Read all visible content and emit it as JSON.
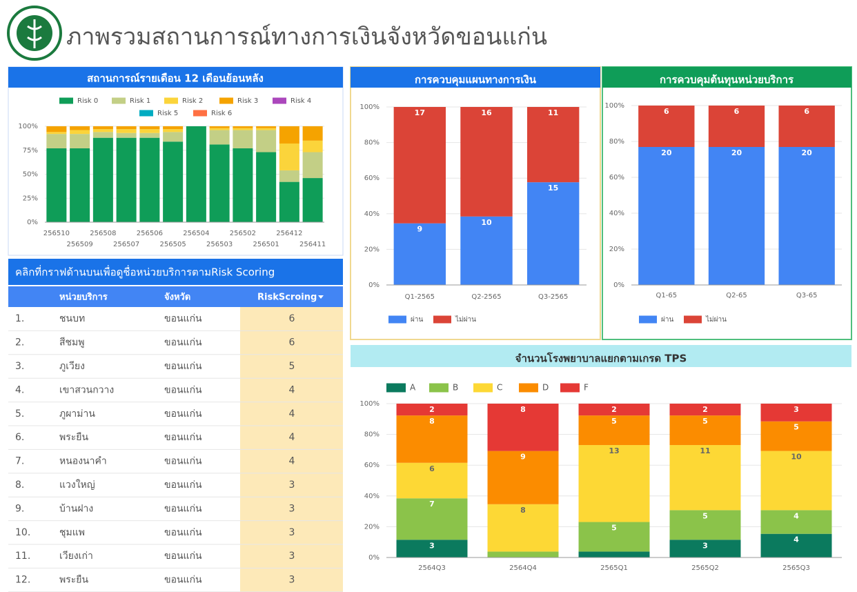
{
  "header": {
    "title": "ภาพรวมสถานการณ์ทางการเงินจังหวัดขอนแก่น"
  },
  "table": {
    "title": "คลิกที่กราฟด้านบนเพื่อดูชื่อหน่วยบริการตามRisk Scoring",
    "columns": [
      "หน่วยบริการ",
      "จังหวัด",
      "RiskScroing"
    ],
    "rows": [
      [
        "1.",
        "ชนบท",
        "ขอนแก่น",
        "6"
      ],
      [
        "2.",
        "สีชมพู",
        "ขอนแก่น",
        "6"
      ],
      [
        "3.",
        "ภูเวียง",
        "ขอนแก่น",
        "5"
      ],
      [
        "4.",
        "เขาสวนกวาง",
        "ขอนแก่น",
        "4"
      ],
      [
        "5.",
        "ภูผาม่าน",
        "ขอนแก่น",
        "4"
      ],
      [
        "6.",
        "พระยืน",
        "ขอนแก่น",
        "4"
      ],
      [
        "7.",
        "หนองนาคำ",
        "ขอนแก่น",
        "4"
      ],
      [
        "8.",
        "แวงใหญ่",
        "ขอนแก่น",
        "3"
      ],
      [
        "9.",
        "บ้านฝาง",
        "ขอนแก่น",
        "3"
      ],
      [
        "10.",
        "ชุมแพ",
        "ขอนแก่น",
        "3"
      ],
      [
        "11.",
        "เวียงเก่า",
        "ขอนแก่น",
        "3"
      ],
      [
        "12.",
        "พระยืน",
        "ขอนแก่น",
        "3"
      ]
    ]
  },
  "chart_data": [
    {
      "type": "bar",
      "stacking": "percent",
      "data_labels": false,
      "title": "สถานการณ์รายเดือน 12 เดือนย้อนหลัง",
      "categories": [
        "256510",
        "256509",
        "256508",
        "256507",
        "256506",
        "256505",
        "256504",
        "256503",
        "256502",
        "256501",
        "256412",
        "256411"
      ],
      "series": [
        {
          "name": "Risk 0",
          "color": "#0f9d58",
          "values": [
            77,
            77,
            88,
            88,
            88,
            84,
            100,
            81,
            77,
            73,
            42,
            46
          ]
        },
        {
          "name": "Risk 1",
          "color": "#c3cf86",
          "values": [
            15,
            15,
            6,
            5,
            5,
            10,
            0,
            15,
            19,
            23,
            12,
            27
          ]
        },
        {
          "name": "Risk 2",
          "color": "#fbd43b",
          "values": [
            2,
            4,
            3,
            4,
            4,
            3,
            0,
            2,
            2,
            2,
            28,
            12
          ]
        },
        {
          "name": "Risk 3",
          "color": "#f5a300",
          "values": [
            6,
            4,
            3,
            3,
            3,
            3,
            0,
            2,
            2,
            2,
            18,
            15
          ]
        },
        {
          "name": "Risk 4",
          "color": "#ab47bc",
          "values": [
            0,
            0,
            0,
            0,
            0,
            0,
            0,
            0,
            0,
            0,
            0,
            0
          ]
        },
        {
          "name": "Risk 5",
          "color": "#00acc1",
          "values": [
            0,
            0,
            0,
            0,
            0,
            0,
            0,
            0,
            0,
            0,
            0,
            0
          ]
        },
        {
          "name": "Risk 6",
          "color": "#ff7043",
          "values": [
            0,
            0,
            0,
            0,
            0,
            0,
            0,
            0,
            0,
            0,
            0,
            0
          ]
        }
      ],
      "ylim": [
        0,
        100
      ],
      "yticks": [
        {
          "value": 0,
          "label": "0%"
        },
        {
          "value": 25,
          "label": "25%"
        },
        {
          "value": 50,
          "label": "50%"
        },
        {
          "value": 75,
          "label": "75%"
        },
        {
          "value": 100,
          "label": "100%"
        }
      ]
    },
    {
      "type": "bar",
      "stacking": "percent",
      "data_labels": true,
      "title": "การควบคุมแผนทางการเงิน",
      "categories": [
        "Q1-2565",
        "Q2-2565",
        "Q3-2565"
      ],
      "series": [
        {
          "name": "ผ่าน",
          "color": "#4285f4",
          "values": [
            9,
            10,
            15
          ]
        },
        {
          "name": "ไม่ผ่าน",
          "color": "#db4437",
          "values": [
            17,
            16,
            11
          ]
        }
      ],
      "ylim": [
        0,
        100
      ],
      "yticks": [
        {
          "value": 0,
          "label": "0%"
        },
        {
          "value": 20,
          "label": "20%"
        },
        {
          "value": 40,
          "label": "40%"
        },
        {
          "value": 60,
          "label": "60%"
        },
        {
          "value": 80,
          "label": "80%"
        },
        {
          "value": 100,
          "label": "100%"
        }
      ]
    },
    {
      "type": "bar",
      "stacking": "percent",
      "data_labels": true,
      "title": "การควบคุมต้นทุนหน่วยบริการ",
      "categories": [
        "Q1-65",
        "Q2-65",
        "Q3-65"
      ],
      "series": [
        {
          "name": "ผ่าน",
          "color": "#4285f4",
          "values": [
            20,
            20,
            20
          ]
        },
        {
          "name": "ไม่ผ่าน",
          "color": "#db4437",
          "values": [
            6,
            6,
            6
          ]
        }
      ],
      "ylim": [
        0,
        100
      ],
      "yticks": [
        {
          "value": 0,
          "label": "0%"
        },
        {
          "value": 20,
          "label": "20%"
        },
        {
          "value": 40,
          "label": "40%"
        },
        {
          "value": 60,
          "label": "60%"
        },
        {
          "value": 80,
          "label": "80%"
        },
        {
          "value": 100,
          "label": "100%"
        }
      ]
    },
    {
      "type": "bar",
      "stacking": "percent",
      "data_labels": true,
      "title": "จำนวนโรงพยาบาลแยกตามเกรด TPS",
      "categories": [
        "2564Q3",
        "2564Q4",
        "2565Q1",
        "2565Q2",
        "2565Q3"
      ],
      "series": [
        {
          "name": "A",
          "color": "#0b7a5e",
          "values": [
            3,
            0,
            1,
            3,
            4
          ]
        },
        {
          "name": "B",
          "color": "#8bc34a",
          "values": [
            7,
            1,
            5,
            5,
            4
          ]
        },
        {
          "name": "C",
          "color": "#fdd835",
          "values": [
            6,
            8,
            13,
            11,
            10
          ]
        },
        {
          "name": "D",
          "color": "#fb8c00",
          "values": [
            8,
            9,
            5,
            5,
            5
          ]
        },
        {
          "name": "F",
          "color": "#e53935",
          "values": [
            2,
            8,
            2,
            2,
            3
          ]
        }
      ],
      "ylim": [
        0,
        100
      ],
      "yticks": [
        {
          "value": 0,
          "label": "0%"
        },
        {
          "value": 20,
          "label": "20%"
        },
        {
          "value": 40,
          "label": "40%"
        },
        {
          "value": 60,
          "label": "60%"
        },
        {
          "value": 80,
          "label": "80%"
        },
        {
          "value": 100,
          "label": "100%"
        }
      ]
    }
  ]
}
